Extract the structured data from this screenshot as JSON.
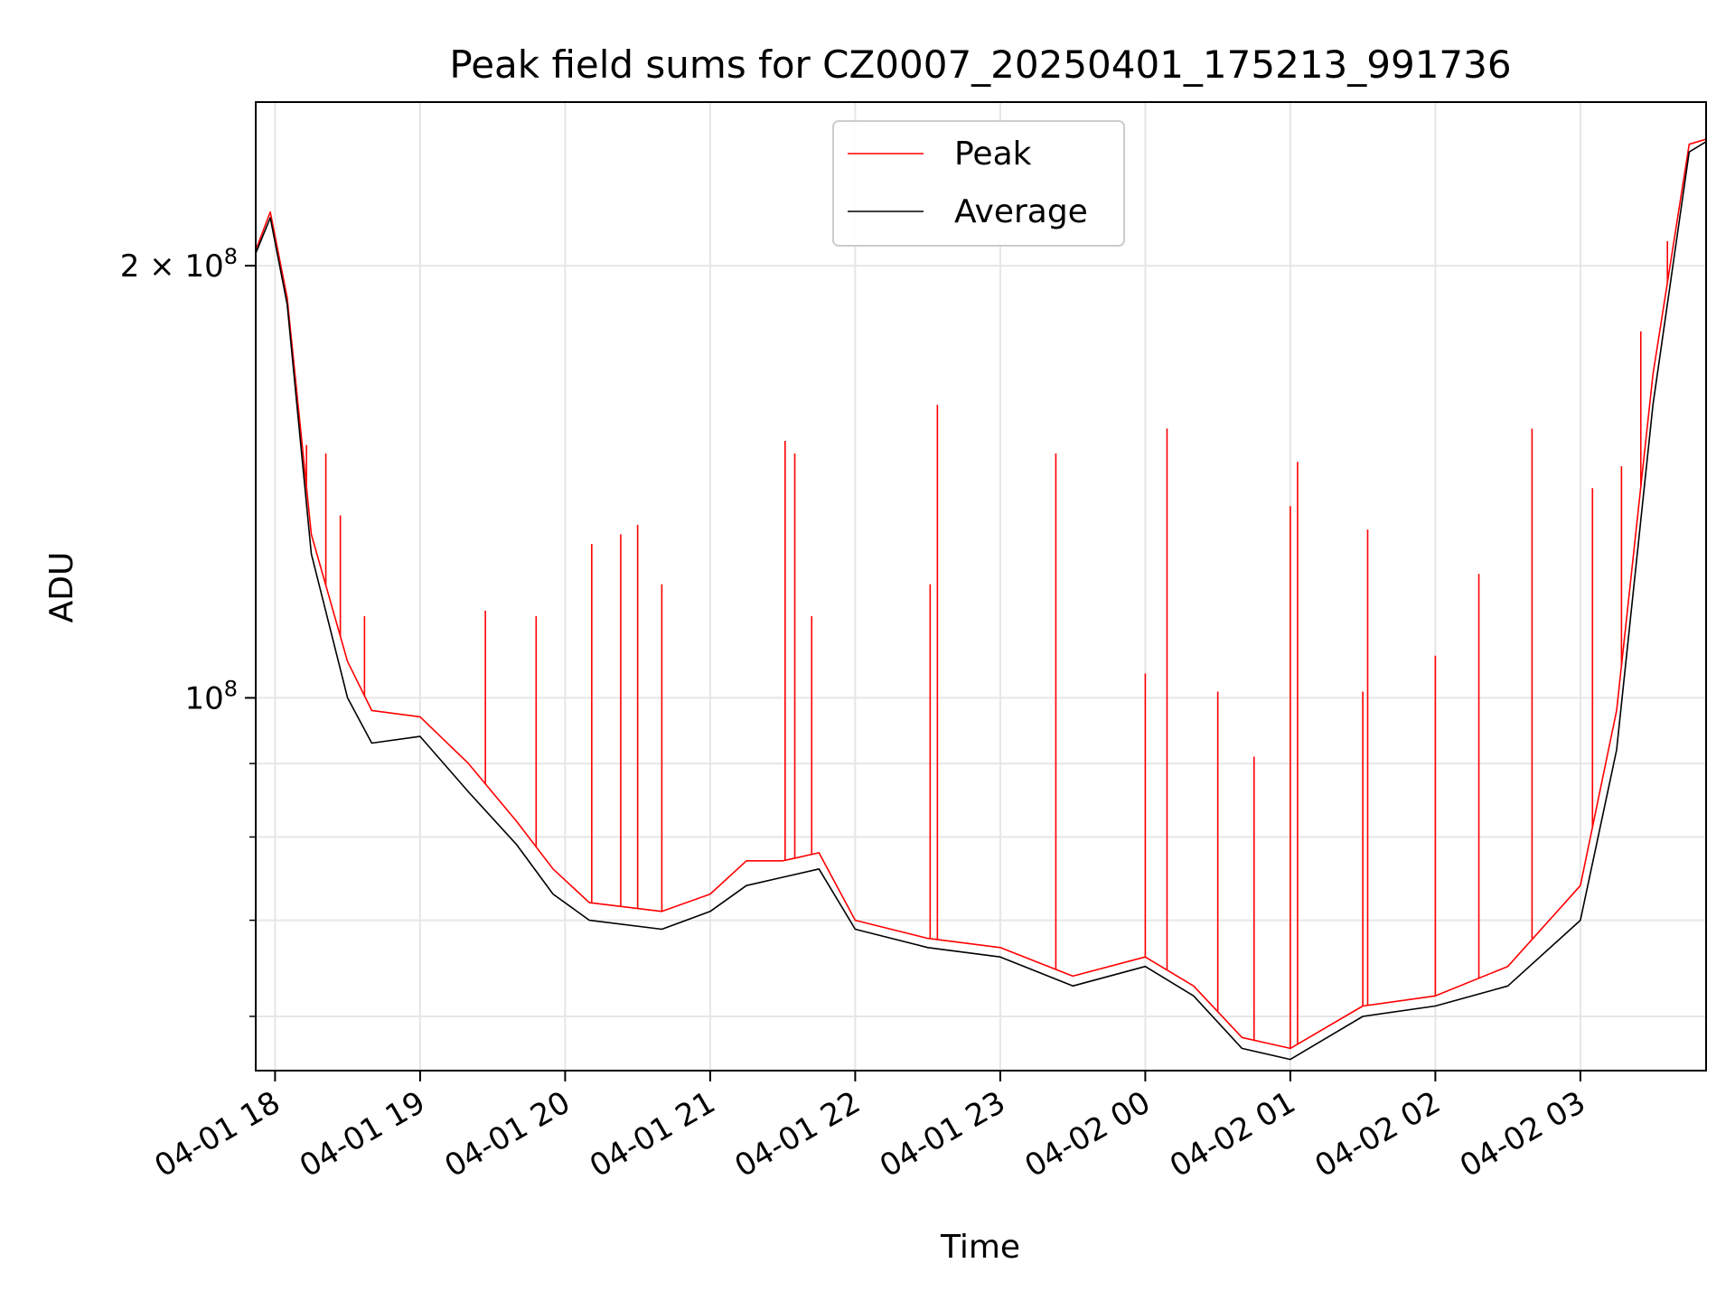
{
  "chart_data": {
    "type": "line",
    "title": "Peak field sums for CZ0007_20250401_175213_991736",
    "xlabel": "Time",
    "ylabel": "ADU",
    "y_scale": "log",
    "grid": true,
    "legend_position": "top-center",
    "x_tick_labels": [
      "04-01 18",
      "04-01 19",
      "04-01 20",
      "04-01 21",
      "04-01 22",
      "04-01 23",
      "04-02 00",
      "04-02 01",
      "04-02 02",
      "04-02 03"
    ],
    "x_tick_times": [
      "2025-04-01 18:00",
      "2025-04-01 19:00",
      "2025-04-01 20:00",
      "2025-04-01 21:00",
      "2025-04-01 22:00",
      "2025-04-01 23:00",
      "2025-04-02 00:00",
      "2025-04-02 01:00",
      "2025-04-02 02:00",
      "2025-04-02 03:00"
    ],
    "x_range": [
      "2025-04-01 17:52",
      "2025-04-02 03:52"
    ],
    "ylim": [
      55000000,
      260000000
    ],
    "y_major_ticks": [
      {
        "value": 100000000,
        "label_base": "10",
        "label_exp": "8"
      },
      {
        "value": 200000000,
        "label_base": "2 × 10",
        "label_exp": "8"
      }
    ],
    "y_minor_ticks": [
      60000000,
      70000000,
      80000000,
      90000000
    ],
    "series": [
      {
        "name": "Peak",
        "color": "#ff0000",
        "x": [
          "2025-04-01 17:52",
          "2025-04-01 17:58",
          "2025-04-01 18:05",
          "2025-04-01 18:15",
          "2025-04-01 18:30",
          "2025-04-01 18:40",
          "2025-04-01 19:00",
          "2025-04-01 19:20",
          "2025-04-01 19:40",
          "2025-04-01 19:55",
          "2025-04-01 20:10",
          "2025-04-01 20:40",
          "2025-04-01 21:00",
          "2025-04-01 21:15",
          "2025-04-01 21:30",
          "2025-04-01 21:45",
          "2025-04-01 22:00",
          "2025-04-01 22:30",
          "2025-04-01 23:00",
          "2025-04-01 23:30",
          "2025-04-02 00:00",
          "2025-04-02 00:20",
          "2025-04-02 00:40",
          "2025-04-02 01:00",
          "2025-04-02 01:30",
          "2025-04-02 02:00",
          "2025-04-02 02:30",
          "2025-04-02 03:00",
          "2025-04-02 03:15",
          "2025-04-02 03:30",
          "2025-04-02 03:45",
          "2025-04-02 03:52"
        ],
        "y": [
          205000000,
          218000000,
          190000000,
          130000000,
          106000000,
          98000000,
          97000000,
          90000000,
          82000000,
          76000000,
          72000000,
          71000000,
          73000000,
          77000000,
          77000000,
          78000000,
          70000000,
          68000000,
          67000000,
          64000000,
          66000000,
          63000000,
          58000000,
          57000000,
          61000000,
          62000000,
          65000000,
          74000000,
          98000000,
          168000000,
          243000000,
          245000000
        ],
        "spikes": [
          {
            "x": "2025-04-01 18:13",
            "y": 150000000
          },
          {
            "x": "2025-04-01 18:21",
            "y": 148000000
          },
          {
            "x": "2025-04-01 18:27",
            "y": 134000000
          },
          {
            "x": "2025-04-01 18:37",
            "y": 114000000
          },
          {
            "x": "2025-04-01 19:27",
            "y": 115000000
          },
          {
            "x": "2025-04-01 19:48",
            "y": 114000000
          },
          {
            "x": "2025-04-01 20:11",
            "y": 128000000
          },
          {
            "x": "2025-04-01 20:23",
            "y": 130000000
          },
          {
            "x": "2025-04-01 20:30",
            "y": 132000000
          },
          {
            "x": "2025-04-01 20:40",
            "y": 120000000
          },
          {
            "x": "2025-04-01 21:31",
            "y": 151000000
          },
          {
            "x": "2025-04-01 21:35",
            "y": 148000000
          },
          {
            "x": "2025-04-01 21:42",
            "y": 114000000
          },
          {
            "x": "2025-04-01 22:31",
            "y": 120000000
          },
          {
            "x": "2025-04-01 22:34",
            "y": 160000000
          },
          {
            "x": "2025-04-01 23:23",
            "y": 148000000
          },
          {
            "x": "2025-04-02 00:00",
            "y": 104000000
          },
          {
            "x": "2025-04-02 00:09",
            "y": 154000000
          },
          {
            "x": "2025-04-02 00:30",
            "y": 101000000
          },
          {
            "x": "2025-04-02 00:45",
            "y": 91000000
          },
          {
            "x": "2025-04-02 01:00",
            "y": 136000000
          },
          {
            "x": "2025-04-02 01:03",
            "y": 146000000
          },
          {
            "x": "2025-04-02 01:30",
            "y": 101000000
          },
          {
            "x": "2025-04-02 01:32",
            "y": 131000000
          },
          {
            "x": "2025-04-02 02:00",
            "y": 107000000
          },
          {
            "x": "2025-04-02 02:18",
            "y": 122000000
          },
          {
            "x": "2025-04-02 02:40",
            "y": 154000000
          },
          {
            "x": "2025-04-02 03:05",
            "y": 140000000
          },
          {
            "x": "2025-04-02 03:17",
            "y": 145000000
          },
          {
            "x": "2025-04-02 03:25",
            "y": 180000000
          },
          {
            "x": "2025-04-02 03:36",
            "y": 208000000
          }
        ]
      },
      {
        "name": "Average",
        "color": "#000000",
        "x": [
          "2025-04-01 17:52",
          "2025-04-01 17:58",
          "2025-04-01 18:05",
          "2025-04-01 18:15",
          "2025-04-01 18:30",
          "2025-04-01 18:40",
          "2025-04-01 19:00",
          "2025-04-01 19:20",
          "2025-04-01 19:40",
          "2025-04-01 19:55",
          "2025-04-01 20:10",
          "2025-04-01 20:40",
          "2025-04-01 21:00",
          "2025-04-01 21:15",
          "2025-04-01 21:30",
          "2025-04-01 21:45",
          "2025-04-01 22:00",
          "2025-04-01 22:30",
          "2025-04-01 23:00",
          "2025-04-01 23:30",
          "2025-04-02 00:00",
          "2025-04-02 00:20",
          "2025-04-02 00:40",
          "2025-04-02 01:00",
          "2025-04-02 01:30",
          "2025-04-02 02:00",
          "2025-04-02 02:30",
          "2025-04-02 03:00",
          "2025-04-02 03:15",
          "2025-04-02 03:30",
          "2025-04-02 03:45",
          "2025-04-02 03:52"
        ],
        "y": [
          204000000,
          216000000,
          188000000,
          126000000,
          100000000,
          93000000,
          94000000,
          86000000,
          79000000,
          73000000,
          70000000,
          69000000,
          71000000,
          74000000,
          75000000,
          76000000,
          69000000,
          67000000,
          66000000,
          63000000,
          65000000,
          62000000,
          57000000,
          56000000,
          60000000,
          61000000,
          63000000,
          70000000,
          92000000,
          160000000,
          240000000,
          244000000
        ]
      }
    ]
  }
}
